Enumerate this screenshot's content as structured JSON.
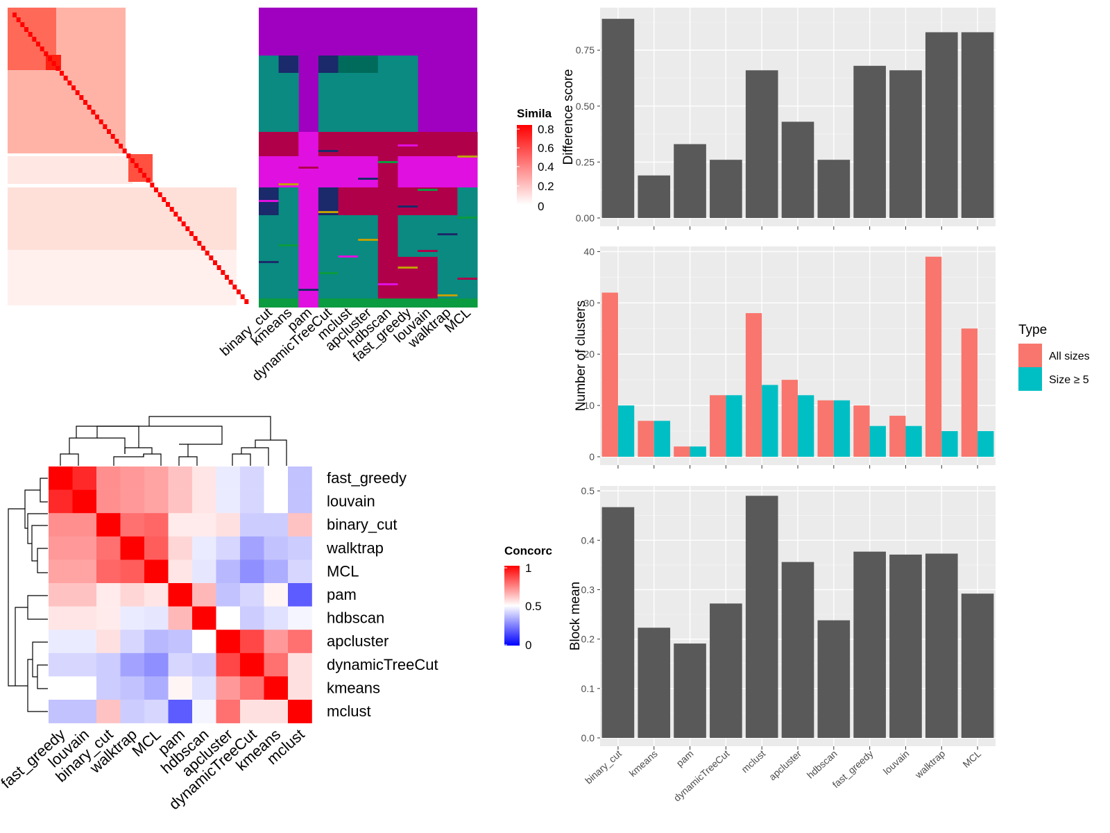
{
  "similarity_panel": {
    "legend_title": "Simila",
    "legend_ticks": [
      "0.8",
      "0.6",
      "0.4",
      "0.2",
      "0"
    ],
    "method_labels": [
      "binary_cut",
      "kmeans",
      "pam",
      "dynamicTreeCut",
      "mclust",
      "apcluster",
      "hdbscan",
      "fast_greedy",
      "louvain",
      "walktrap",
      "MCL"
    ]
  },
  "concordance_panel": {
    "legend_title": "Concorc",
    "legend_ticks": [
      "1",
      "0.5",
      "0"
    ],
    "row_labels": [
      "fast_greedy",
      "louvain",
      "binary_cut",
      "walktrap",
      "MCL",
      "pam",
      "hdbscan",
      "apcluster",
      "dynamicTreeCut",
      "kmeans",
      "mclust"
    ],
    "col_labels": [
      "fast_greedy",
      "louvain",
      "binary_cut",
      "walktrap",
      "MCL",
      "pam",
      "hdbscan",
      "apcluster",
      "dynamicTreeCut",
      "kmeans",
      "mclust"
    ]
  },
  "chart_data": [
    {
      "type": "heatmap",
      "id": "concordance",
      "legend_title": "Concorc",
      "rows": [
        "fast_greedy",
        "louvain",
        "binary_cut",
        "walktrap",
        "MCL",
        "pam",
        "hdbscan",
        "apcluster",
        "dynamicTreeCut",
        "kmeans",
        "mclust"
      ],
      "cols": [
        "fast_greedy",
        "louvain",
        "binary_cut",
        "walktrap",
        "MCL",
        "pam",
        "hdbscan",
        "apcluster",
        "dynamicTreeCut",
        "kmeans",
        "mclust"
      ],
      "values": [
        [
          1.0,
          0.92,
          0.72,
          0.7,
          0.68,
          0.62,
          0.55,
          0.46,
          0.42,
          0.5,
          0.38
        ],
        [
          0.92,
          1.0,
          0.72,
          0.7,
          0.68,
          0.62,
          0.55,
          0.46,
          0.42,
          0.5,
          0.38
        ],
        [
          0.72,
          0.72,
          1.0,
          0.78,
          0.8,
          0.54,
          0.54,
          0.56,
          0.4,
          0.4,
          0.62
        ],
        [
          0.7,
          0.7,
          0.78,
          1.0,
          0.82,
          0.58,
          0.46,
          0.42,
          0.32,
          0.38,
          0.4
        ],
        [
          0.68,
          0.68,
          0.8,
          0.82,
          1.0,
          0.55,
          0.45,
          0.36,
          0.28,
          0.34,
          0.42
        ],
        [
          0.62,
          0.62,
          0.54,
          0.58,
          0.55,
          1.0,
          0.64,
          0.38,
          0.42,
          0.52,
          0.18
        ],
        [
          0.55,
          0.55,
          0.54,
          0.46,
          0.45,
          0.64,
          1.0,
          0.5,
          0.4,
          0.44,
          0.48
        ],
        [
          0.46,
          0.46,
          0.56,
          0.42,
          0.36,
          0.38,
          0.5,
          1.0,
          0.86,
          0.7,
          0.78
        ],
        [
          0.42,
          0.42,
          0.4,
          0.32,
          0.28,
          0.42,
          0.4,
          0.86,
          1.0,
          0.78,
          0.56
        ],
        [
          0.5,
          0.5,
          0.4,
          0.38,
          0.34,
          0.52,
          0.44,
          0.7,
          0.78,
          1.0,
          0.56
        ],
        [
          0.38,
          0.38,
          0.62,
          0.4,
          0.42,
          0.18,
          0.48,
          0.78,
          0.56,
          0.56,
          1.0
        ]
      ],
      "scale": [
        0,
        0.5,
        1
      ],
      "colors": [
        "#0000ff",
        "#ffffff",
        "#ff0000"
      ]
    },
    {
      "type": "bar",
      "id": "difference-score",
      "categories": [
        "binary_cut",
        "kmeans",
        "pam",
        "dynamicTreeCut",
        "mclust",
        "apcluster",
        "hdbscan",
        "fast_greedy",
        "louvain",
        "walktrap",
        "MCL"
      ],
      "values": [
        0.89,
        0.19,
        0.33,
        0.26,
        0.66,
        0.43,
        0.26,
        0.68,
        0.66,
        0.83,
        0.83
      ],
      "ylabel": "Difference score",
      "yticks": [
        "0.00",
        "0.25",
        "0.50",
        "0.75"
      ],
      "ylim": [
        0,
        0.94
      ],
      "color": "#595959"
    },
    {
      "type": "bar",
      "id": "number-of-clusters",
      "categories": [
        "binary_cut",
        "kmeans",
        "pam",
        "dynamicTreeCut",
        "mclust",
        "apcluster",
        "hdbscan",
        "fast_greedy",
        "louvain",
        "walktrap",
        "MCL"
      ],
      "series": [
        {
          "name": "All sizes",
          "values": [
            32,
            7,
            2,
            12,
            28,
            15,
            11,
            10,
            8,
            39,
            25
          ],
          "color": "#f8766d"
        },
        {
          "name": "Size ≥ 5",
          "values": [
            10,
            7,
            2,
            12,
            14,
            12,
            11,
            6,
            6,
            5,
            5
          ],
          "color": "#00bfc4"
        }
      ],
      "ylabel": "Number of clusters",
      "yticks": [
        "0",
        "10",
        "20",
        "30",
        "40"
      ],
      "ylim": [
        0,
        41
      ],
      "legend": {
        "title": "Type",
        "position": "right"
      }
    },
    {
      "type": "bar",
      "id": "block-mean",
      "categories": [
        "binary_cut",
        "kmeans",
        "pam",
        "dynamicTreeCut",
        "mclust",
        "apcluster",
        "hdbscan",
        "fast_greedy",
        "louvain",
        "walktrap",
        "MCL"
      ],
      "values": [
        0.467,
        0.223,
        0.191,
        0.272,
        0.49,
        0.356,
        0.238,
        0.377,
        0.371,
        0.373,
        0.292
      ],
      "ylabel": "Block mean",
      "yticks": [
        "0.0",
        "0.1",
        "0.2",
        "0.3",
        "0.4",
        "0.5"
      ],
      "ylim": [
        0,
        0.51
      ],
      "color": "#595959"
    }
  ]
}
